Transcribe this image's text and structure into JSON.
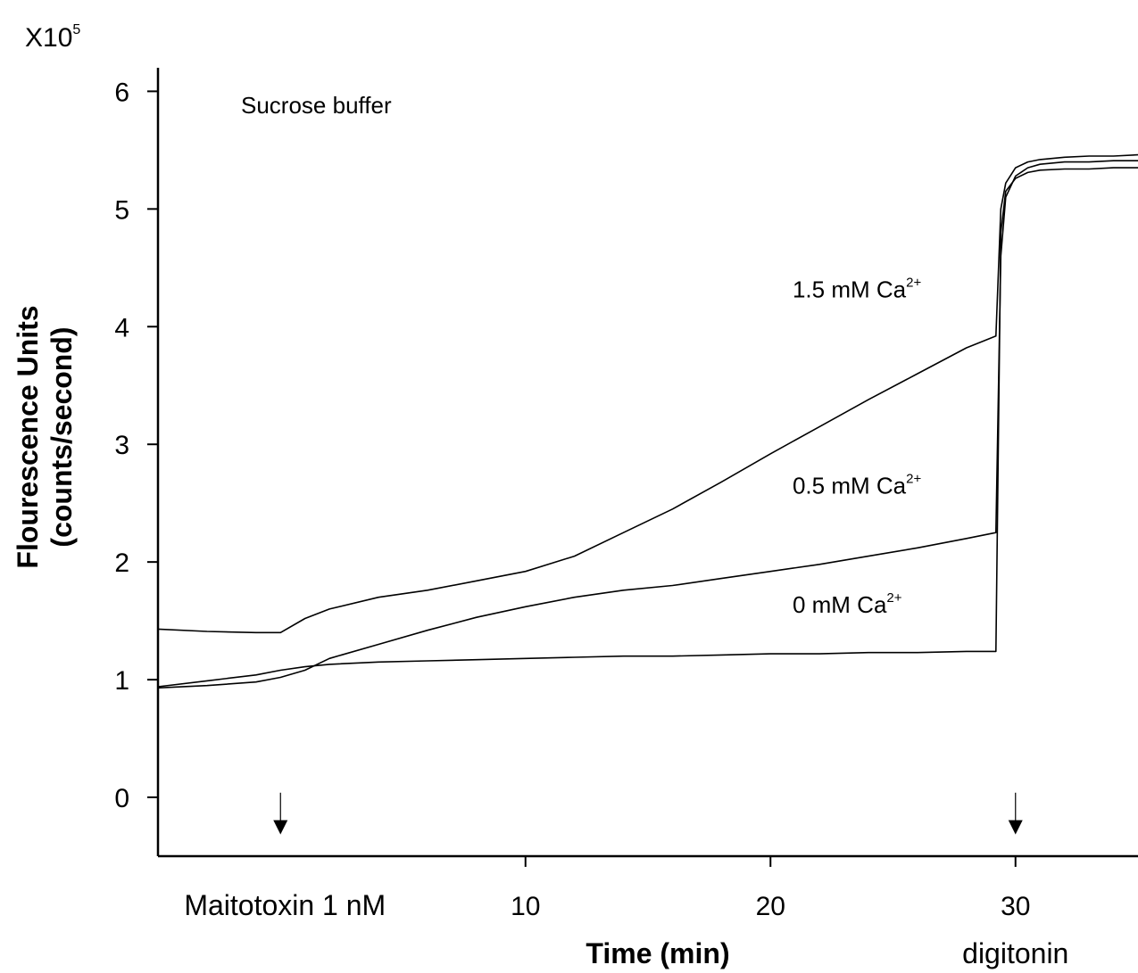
{
  "chart_data": {
    "type": "line",
    "title": "",
    "xlabel": "Time (min)",
    "ylabel": "Flourescence Units",
    "ylabel_line2": "(counts/second)",
    "y_multiplier": "X10",
    "y_multiplier_exp": "5",
    "xlim": [
      -5,
      35
    ],
    "ylim": [
      -0.5,
      6.2
    ],
    "x_ticks": [
      10,
      20,
      30
    ],
    "y_ticks": [
      0,
      1,
      2,
      3,
      4,
      5,
      6
    ],
    "grid": false,
    "condition_label": "Sucrose buffer",
    "markers": [
      {
        "label": "Maitotoxin 1 nM",
        "x": 0
      },
      {
        "label": "digitonin",
        "x": 30
      }
    ],
    "series": [
      {
        "name": "1.5 mM Ca",
        "sup": "2+",
        "x": [
          -5,
          -3,
          -1,
          0,
          1,
          2,
          4,
          6,
          8,
          10,
          12,
          14,
          16,
          18,
          20,
          22,
          24,
          26,
          28,
          29.2,
          29.4,
          29.6,
          30,
          30.5,
          31,
          32,
          33,
          34,
          35
        ],
        "y": [
          1.43,
          1.41,
          1.4,
          1.4,
          1.52,
          1.6,
          1.7,
          1.76,
          1.84,
          1.92,
          2.05,
          2.25,
          2.45,
          2.68,
          2.92,
          3.15,
          3.38,
          3.6,
          3.82,
          3.92,
          5.0,
          5.22,
          5.35,
          5.4,
          5.42,
          5.44,
          5.45,
          5.45,
          5.46
        ]
      },
      {
        "name": "0.5 mM Ca",
        "sup": "2+",
        "x": [
          -5,
          -3,
          -1,
          0,
          1,
          2,
          4,
          6,
          8,
          10,
          12,
          14,
          16,
          18,
          20,
          22,
          24,
          26,
          28,
          29.2,
          29.4,
          29.6,
          30,
          30.5,
          31,
          32,
          33,
          34,
          35
        ],
        "y": [
          0.93,
          0.95,
          0.98,
          1.02,
          1.08,
          1.18,
          1.3,
          1.42,
          1.53,
          1.62,
          1.7,
          1.76,
          1.8,
          1.86,
          1.92,
          1.98,
          2.05,
          2.12,
          2.2,
          2.25,
          4.6,
          5.1,
          5.28,
          5.35,
          5.38,
          5.4,
          5.4,
          5.41,
          5.41
        ]
      },
      {
        "name": "0 mM Ca",
        "sup": "2+",
        "x": [
          -5,
          -3,
          -1,
          0,
          1,
          2,
          4,
          6,
          8,
          10,
          12,
          14,
          16,
          18,
          20,
          22,
          24,
          26,
          28,
          29.2,
          29.4,
          29.6,
          30,
          30.5,
          31,
          32,
          33,
          34,
          35
        ],
        "y": [
          0.94,
          0.99,
          1.04,
          1.08,
          1.11,
          1.13,
          1.15,
          1.16,
          1.17,
          1.18,
          1.19,
          1.2,
          1.2,
          1.21,
          1.22,
          1.22,
          1.23,
          1.23,
          1.24,
          1.24,
          4.8,
          5.15,
          5.26,
          5.31,
          5.33,
          5.34,
          5.34,
          5.35,
          5.35
        ]
      }
    ]
  }
}
